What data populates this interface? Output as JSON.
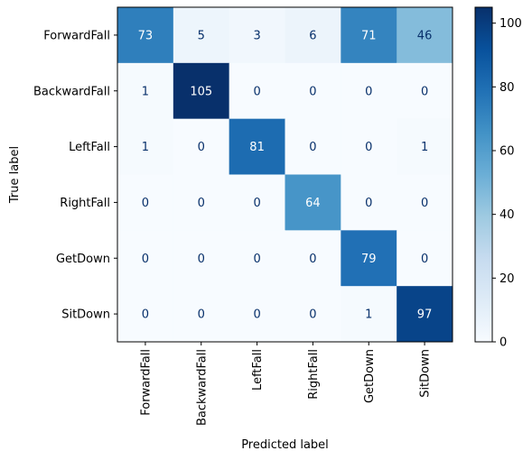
{
  "chart_data": {
    "type": "heatmap",
    "title": "",
    "xlabel": "Predicted label",
    "ylabel": "True label",
    "x_categories": [
      "ForwardFall",
      "BackwardFall",
      "LeftFall",
      "RightFall",
      "GetDown",
      "SitDown"
    ],
    "y_categories": [
      "ForwardFall",
      "BackwardFall",
      "LeftFall",
      "RightFall",
      "GetDown",
      "SitDown"
    ],
    "values": [
      [
        73,
        5,
        3,
        6,
        71,
        46
      ],
      [
        1,
        105,
        0,
        0,
        0,
        0
      ],
      [
        1,
        0,
        81,
        0,
        0,
        1
      ],
      [
        0,
        0,
        0,
        64,
        0,
        0
      ],
      [
        0,
        0,
        0,
        0,
        79,
        0
      ],
      [
        0,
        0,
        0,
        0,
        1,
        97
      ]
    ],
    "colormap": "Blues",
    "color_range": [
      0,
      105
    ],
    "colorbar_ticks": [
      0,
      20,
      40,
      60,
      80,
      100
    ]
  }
}
